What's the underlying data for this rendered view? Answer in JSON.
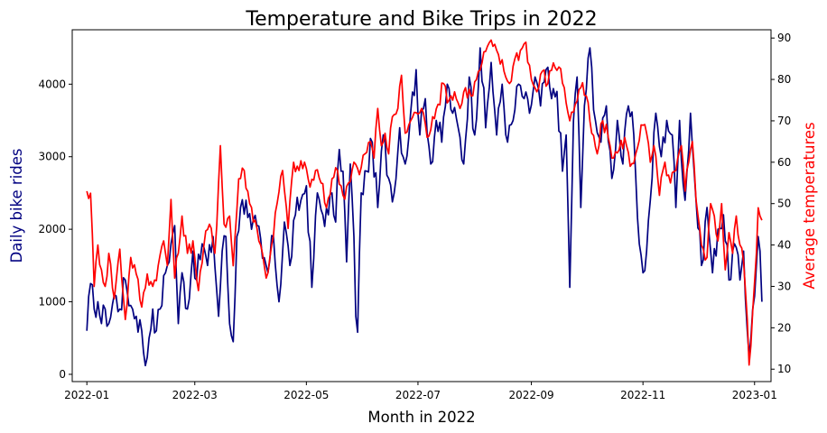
{
  "chart_data": {
    "type": "line",
    "title": "Temperature and Bike Trips in 2022",
    "xlabel": "Month in 2022",
    "ylabel_left": "Daily bike rides",
    "ylabel_right": "Average temperatures",
    "x_ticks": [
      "2022-01",
      "2022-03",
      "2022-05",
      "2022-07",
      "2022-09",
      "2022-11",
      "2023-01"
    ],
    "y_left_ticks": [
      0,
      1000,
      2000,
      3000,
      4000
    ],
    "y_left_range": [
      -100,
      4750
    ],
    "y_right_ticks": [
      10,
      20,
      30,
      40,
      50,
      60,
      70,
      80,
      90
    ],
    "y_right_range": [
      7,
      92
    ],
    "x_range_days": [
      -8,
      374
    ],
    "grid": false,
    "colors": {
      "rides": "#000080",
      "temperature": "#ff0000"
    },
    "series": [
      {
        "key": "rides",
        "axis": "left",
        "keypoints": [
          [
            0,
            600
          ],
          [
            2,
            1250
          ],
          [
            4,
            900
          ],
          [
            6,
            1000
          ],
          [
            8,
            700
          ],
          [
            10,
            900
          ],
          [
            12,
            700
          ],
          [
            15,
            1100
          ],
          [
            18,
            900
          ],
          [
            21,
            1300
          ],
          [
            24,
            950
          ],
          [
            27,
            800
          ],
          [
            30,
            600
          ],
          [
            31,
            300
          ],
          [
            32,
            120
          ],
          [
            34,
            500
          ],
          [
            36,
            900
          ],
          [
            38,
            600
          ],
          [
            40,
            900
          ],
          [
            43,
            1400
          ],
          [
            46,
            1800
          ],
          [
            48,
            2050
          ],
          [
            50,
            700
          ],
          [
            52,
            1400
          ],
          [
            55,
            900
          ],
          [
            58,
            1700
          ],
          [
            60,
            1300
          ],
          [
            63,
            1800
          ],
          [
            66,
            1500
          ],
          [
            69,
            1900
          ],
          [
            72,
            800
          ],
          [
            74,
            1700
          ],
          [
            76,
            1900
          ],
          [
            78,
            700
          ],
          [
            80,
            450
          ],
          [
            82,
            1900
          ],
          [
            84,
            2300
          ],
          [
            87,
            2400
          ],
          [
            90,
            2000
          ],
          [
            93,
            2050
          ],
          [
            96,
            1600
          ],
          [
            99,
            1400
          ],
          [
            102,
            1900
          ],
          [
            105,
            1000
          ],
          [
            108,
            2100
          ],
          [
            111,
            1500
          ],
          [
            114,
            2200
          ],
          [
            117,
            2400
          ],
          [
            120,
            2600
          ],
          [
            123,
            1200
          ],
          [
            126,
            2500
          ],
          [
            129,
            2200
          ],
          [
            132,
            2200
          ],
          [
            134,
            2500
          ],
          [
            136,
            2100
          ],
          [
            138,
            3100
          ],
          [
            140,
            2800
          ],
          [
            142,
            1550
          ],
          [
            144,
            2900
          ],
          [
            146,
            1900
          ],
          [
            147,
            800
          ],
          [
            148,
            580
          ],
          [
            150,
            2500
          ],
          [
            153,
            2800
          ],
          [
            156,
            3200
          ],
          [
            159,
            2300
          ],
          [
            162,
            3300
          ],
          [
            165,
            2700
          ],
          [
            168,
            2500
          ],
          [
            171,
            3400
          ],
          [
            174,
            2900
          ],
          [
            177,
            3600
          ],
          [
            180,
            4200
          ],
          [
            182,
            3300
          ],
          [
            185,
            3800
          ],
          [
            188,
            2900
          ],
          [
            191,
            3500
          ],
          [
            194,
            3200
          ],
          [
            197,
            4000
          ],
          [
            200,
            3600
          ],
          [
            203,
            3400
          ],
          [
            206,
            2900
          ],
          [
            209,
            4100
          ],
          [
            212,
            3300
          ],
          [
            215,
            4500
          ],
          [
            218,
            3400
          ],
          [
            221,
            4300
          ],
          [
            224,
            3300
          ],
          [
            227,
            4000
          ],
          [
            230,
            3200
          ],
          [
            233,
            3500
          ],
          [
            236,
            4000
          ],
          [
            239,
            3800
          ],
          [
            242,
            3600
          ],
          [
            245,
            4100
          ],
          [
            248,
            3700
          ],
          [
            251,
            4200
          ],
          [
            254,
            3800
          ],
          [
            257,
            3900
          ],
          [
            260,
            2800
          ],
          [
            262,
            3300
          ],
          [
            264,
            1200
          ],
          [
            266,
            3500
          ],
          [
            268,
            4100
          ],
          [
            270,
            2300
          ],
          [
            272,
            3700
          ],
          [
            275,
            4500
          ],
          [
            278,
            3500
          ],
          [
            281,
            3200
          ],
          [
            284,
            3700
          ],
          [
            287,
            2700
          ],
          [
            290,
            3500
          ],
          [
            293,
            2900
          ],
          [
            296,
            3700
          ],
          [
            299,
            3300
          ],
          [
            302,
            1800
          ],
          [
            304,
            1400
          ],
          [
            306,
            1700
          ],
          [
            308,
            2400
          ],
          [
            311,
            3600
          ],
          [
            314,
            3000
          ],
          [
            317,
            3500
          ],
          [
            320,
            3300
          ],
          [
            322,
            2300
          ],
          [
            324,
            3500
          ],
          [
            327,
            2400
          ],
          [
            330,
            3600
          ],
          [
            333,
            2400
          ],
          [
            336,
            1500
          ],
          [
            339,
            2300
          ],
          [
            342,
            1400
          ],
          [
            345,
            2000
          ],
          [
            348,
            2200
          ],
          [
            351,
            1300
          ],
          [
            354,
            1800
          ],
          [
            357,
            1300
          ],
          [
            359,
            1700
          ],
          [
            361,
            600
          ],
          [
            362,
            250
          ],
          [
            364,
            900
          ],
          [
            366,
            1500
          ],
          [
            367,
            1900
          ],
          [
            368,
            1700
          ],
          [
            369,
            1000
          ]
        ]
      },
      {
        "key": "temperature",
        "axis": "right",
        "keypoints": [
          [
            0,
            53
          ],
          [
            2,
            52.5
          ],
          [
            4,
            30
          ],
          [
            6,
            40
          ],
          [
            8,
            34
          ],
          [
            10,
            30
          ],
          [
            12,
            38
          ],
          [
            15,
            27
          ],
          [
            18,
            39
          ],
          [
            21,
            22
          ],
          [
            24,
            37
          ],
          [
            27,
            33
          ],
          [
            30,
            25
          ],
          [
            33,
            33
          ],
          [
            36,
            30
          ],
          [
            39,
            35
          ],
          [
            42,
            41
          ],
          [
            44,
            35
          ],
          [
            46,
            51
          ],
          [
            48,
            32
          ],
          [
            50,
            38
          ],
          [
            52,
            47
          ],
          [
            55,
            38
          ],
          [
            58,
            41
          ],
          [
            61,
            29
          ],
          [
            64,
            40
          ],
          [
            67,
            45
          ],
          [
            70,
            38
          ],
          [
            72,
            55
          ],
          [
            73,
            64
          ],
          [
            75,
            45
          ],
          [
            78,
            47
          ],
          [
            80,
            35
          ],
          [
            83,
            56
          ],
          [
            86,
            58
          ],
          [
            89,
            50
          ],
          [
            92,
            46
          ],
          [
            95,
            40
          ],
          [
            98,
            32
          ],
          [
            101,
            40
          ],
          [
            104,
            50
          ],
          [
            107,
            58
          ],
          [
            110,
            44
          ],
          [
            113,
            60
          ],
          [
            116,
            58
          ],
          [
            119,
            60
          ],
          [
            122,
            54
          ],
          [
            125,
            58
          ],
          [
            128,
            55
          ],
          [
            131,
            49
          ],
          [
            134,
            56
          ],
          [
            137,
            58
          ],
          [
            140,
            52
          ],
          [
            143,
            55
          ],
          [
            146,
            60
          ],
          [
            149,
            57
          ],
          [
            152,
            62
          ],
          [
            155,
            65
          ],
          [
            157,
            61
          ],
          [
            159,
            73
          ],
          [
            161,
            64
          ],
          [
            163,
            67
          ],
          [
            165,
            62
          ],
          [
            167,
            71
          ],
          [
            170,
            73
          ],
          [
            172,
            81
          ],
          [
            174,
            67
          ],
          [
            177,
            70
          ],
          [
            180,
            72
          ],
          [
            183,
            73
          ],
          [
            186,
            66
          ],
          [
            189,
            71
          ],
          [
            192,
            74
          ],
          [
            195,
            79
          ],
          [
            198,
            75
          ],
          [
            201,
            77
          ],
          [
            204,
            73
          ],
          [
            207,
            78
          ],
          [
            210,
            76
          ],
          [
            213,
            80
          ],
          [
            216,
            84
          ],
          [
            219,
            88
          ],
          [
            222,
            88
          ],
          [
            225,
            86
          ],
          [
            228,
            82
          ],
          [
            231,
            79
          ],
          [
            234,
            85
          ],
          [
            237,
            87
          ],
          [
            240,
            89
          ],
          [
            243,
            80
          ],
          [
            246,
            77
          ],
          [
            249,
            82
          ],
          [
            252,
            79
          ],
          [
            255,
            84
          ],
          [
            258,
            83
          ],
          [
            261,
            78
          ],
          [
            264,
            70
          ],
          [
            267,
            74
          ],
          [
            270,
            78
          ],
          [
            273,
            76
          ],
          [
            276,
            67
          ],
          [
            279,
            62
          ],
          [
            282,
            70
          ],
          [
            285,
            66
          ],
          [
            288,
            61
          ],
          [
            291,
            63
          ],
          [
            294,
            66
          ],
          [
            297,
            59
          ],
          [
            300,
            62
          ],
          [
            303,
            69
          ],
          [
            306,
            67
          ],
          [
            308,
            60
          ],
          [
            310,
            64
          ],
          [
            313,
            52
          ],
          [
            316,
            60
          ],
          [
            319,
            55
          ],
          [
            322,
            58
          ],
          [
            325,
            64
          ],
          [
            327,
            53
          ],
          [
            329,
            60
          ],
          [
            331,
            65
          ],
          [
            333,
            51
          ],
          [
            335,
            44
          ],
          [
            337,
            39
          ],
          [
            339,
            37
          ],
          [
            341,
            50
          ],
          [
            343,
            47
          ],
          [
            345,
            41
          ],
          [
            347,
            50
          ],
          [
            349,
            34
          ],
          [
            351,
            43
          ],
          [
            353,
            38
          ],
          [
            355,
            47
          ],
          [
            357,
            40
          ],
          [
            359,
            36
          ],
          [
            361,
            22
          ],
          [
            362,
            11
          ],
          [
            364,
            24
          ],
          [
            366,
            38
          ],
          [
            367,
            49
          ],
          [
            368,
            47
          ],
          [
            369,
            46
          ]
        ]
      }
    ]
  }
}
